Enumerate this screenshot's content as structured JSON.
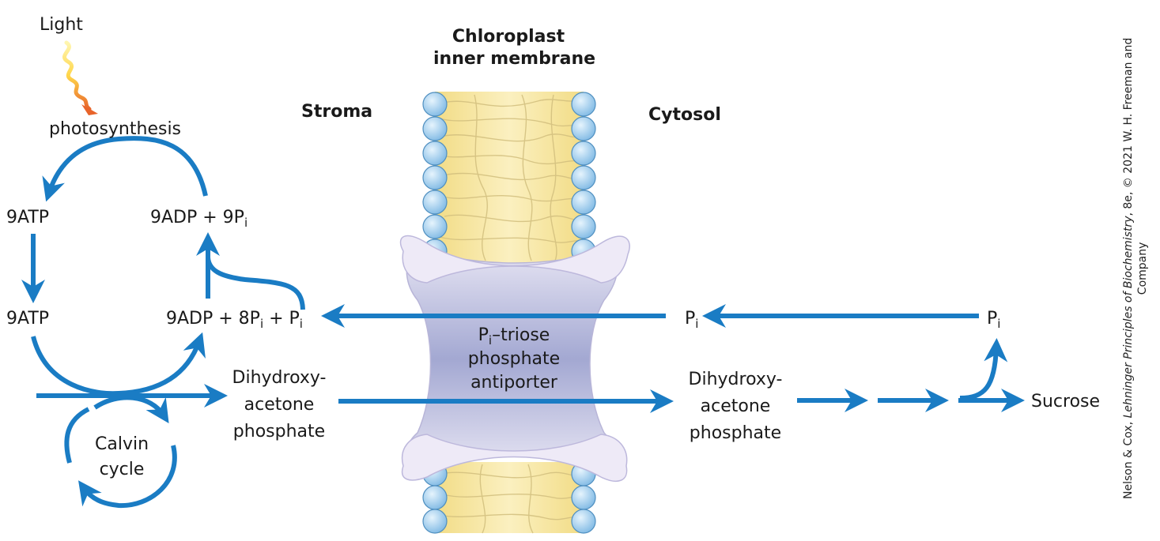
{
  "labels": {
    "light": "Light",
    "photosynthesis": "photosynthesis",
    "chloroplast_membrane_line1": "Chloroplast",
    "chloroplast_membrane_line2": "inner membrane",
    "stroma": "Stroma",
    "cytosol": "Cytosol",
    "atp_top": "9ATP",
    "atp_bottom": "9ATP",
    "adp_top_main": "9ADP + 9P",
    "adp_top_sub": "i",
    "adp_bottom_a": "9ADP + 8P",
    "adp_bottom_sub1": "i",
    "adp_bottom_b": " + P",
    "adp_bottom_sub2": "i",
    "dhap_left_line1": "Dihydroxy-",
    "dhap_left_line2": "acetone",
    "dhap_left_line3": "phosphate",
    "dhap_right_line1": "Dihydroxy-",
    "dhap_right_line2": "acetone",
    "dhap_right_line3": "phosphate",
    "calvin_line1": "Calvin",
    "calvin_line2": "cycle",
    "antiporter_p": "P",
    "antiporter_sub": "i",
    "antiporter_line1_rest": "–triose",
    "antiporter_line2": "phosphate",
    "antiporter_line3": "antiporter",
    "pi_mid": "P",
    "pi_mid_sub": "i",
    "pi_right": "P",
    "pi_right_sub": "i",
    "sucrose": "Sucrose"
  },
  "credit": {
    "line1_prefix": "Nelson & Cox, ",
    "line1_title": "Lehninger Principles of Biochemistry",
    "line1_suffix": ", 8e, © 2021 W. H. Freeman and",
    "line2": "Company"
  },
  "colors": {
    "arrow": "#1a7cc4",
    "lipid_head": "#a9d3ef",
    "lipid_tail_bg": "#f5e6a0",
    "antiporter": "#e6e2f2",
    "antiporter_center": "#a9acd4",
    "light_wave_start": "#fff3a0",
    "light_wave_end": "#e8642a"
  }
}
